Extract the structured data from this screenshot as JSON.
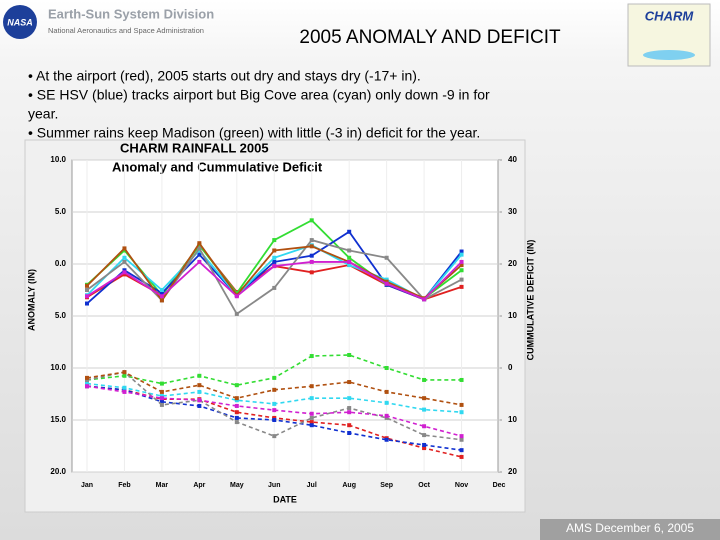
{
  "header": {
    "logo_text": "NASA",
    "division": "Earth-Sun System Division",
    "agency": "National Aeronautics and Space Administration",
    "title": "2005 ANOMALY AND DEFICIT",
    "charm_logo": "CHARM"
  },
  "bullets": [
    "• At the airport (red), 2005 starts out dry and stays dry (-17+ in).",
    "• SE HSV (blue) tracks airport but Big Cove area (cyan) only down -9 in for",
    "year.",
    "• Summer rains keep Madison (green) with little (-3 in) deficit for the year."
  ],
  "footer": "AMS December 6, 2005",
  "chart_data": {
    "type": "line",
    "title": "CHARM RAINFALL 2005",
    "subtitle": "Anomaly and Cummulative Deficit",
    "x_label": "DATE",
    "y_label": "ANOMALY (IN)",
    "y2_label": "CUMMULATIVE DEFICIT (IN)",
    "categories": [
      "Jan",
      "Feb",
      "Mar",
      "Apr",
      "May",
      "Jun",
      "Jul",
      "Aug",
      "Sep",
      "Oct",
      "Nov",
      "Dec"
    ],
    "ylim": [
      -20,
      10
    ],
    "yticks": [
      {
        "value": 10,
        "label": "10.0"
      },
      {
        "value": 5,
        "label": "5.0"
      },
      {
        "value": 0,
        "label": "0.0"
      },
      {
        "value": -5,
        "label": "5.0"
      },
      {
        "value": -10,
        "label": "10.0"
      },
      {
        "value": -15,
        "label": "15.0"
      },
      {
        "value": -20,
        "label": "20.0"
      }
    ],
    "y2lim": [
      -20,
      40
    ],
    "y2ticks": [
      40,
      30,
      20,
      10,
      0,
      {
        "value": -10,
        "label": "10"
      },
      {
        "value": -20,
        "label": "20"
      }
    ],
    "grid": true,
    "series": [
      {
        "color": "#e02020",
        "values": [
          -3.2,
          -1,
          -3,
          1.8,
          -2.7,
          -0.2,
          -0.8,
          -0.1,
          -2,
          -3.4,
          -2.2,
          null
        ]
      },
      {
        "color": "#33dd33",
        "values": [
          -2,
          1.3,
          -3,
          1.8,
          -2.8,
          2.3,
          4.2,
          0.6,
          -2,
          -3.3,
          -0.6,
          null
        ]
      },
      {
        "color": "#1030d0",
        "values": [
          -3.8,
          -0.6,
          -2.8,
          0.9,
          -3,
          0.2,
          0.8,
          3.1,
          -2,
          -3.4,
          1.2,
          null
        ]
      },
      {
        "color": "#30d8f0",
        "values": [
          -3,
          0.6,
          -2.5,
          1.3,
          -3,
          0.6,
          1.8,
          -0.1,
          -1.5,
          -3.4,
          0.9,
          null
        ]
      },
      {
        "color": "#888888",
        "values": [
          -2.5,
          0.2,
          -3.5,
          1.5,
          -4.8,
          -2.3,
          2.3,
          1.3,
          0.6,
          -3.4,
          -1.5,
          null
        ]
      },
      {
        "color": "#b05010",
        "values": [
          -2.1,
          1.5,
          -3.5,
          2,
          -3,
          1.3,
          1.7,
          0.2,
          -1.7,
          -3.3,
          -0.1,
          null
        ]
      },
      {
        "color": "#d020d0",
        "values": [
          -3.1,
          -0.8,
          -3.1,
          0.2,
          -3.1,
          -0.2,
          0.2,
          0.2,
          -1.9,
          -3.4,
          0.2,
          null
        ]
      },
      {
        "color": "#e02020",
        "axis": "y2",
        "values": [
          -3.5,
          -4.2,
          -6,
          -6,
          -8.5,
          -9.6,
          -10.4,
          -11,
          -13.5,
          -15.4,
          -17.1,
          null
        ]
      },
      {
        "color": "#33dd33",
        "axis": "y2",
        "values": [
          -2.3,
          -1.5,
          -3,
          -1.5,
          -3.3,
          -1.9,
          2.3,
          2.5,
          0,
          -2.3,
          -2.3,
          null
        ]
      },
      {
        "color": "#1030d0",
        "axis": "y2",
        "values": [
          -3.5,
          -4.2,
          -6.5,
          -7.3,
          -9.6,
          -10,
          -11,
          -12.5,
          -13.8,
          -14.8,
          -15.8,
          null
        ]
      },
      {
        "color": "#30d8f0",
        "axis": "y2",
        "values": [
          -3,
          -3.8,
          -5.4,
          -4.6,
          -6.2,
          -6.9,
          -5.8,
          -5.8,
          -6.7,
          -8,
          -8.5,
          null
        ]
      },
      {
        "color": "#888888",
        "axis": "y2",
        "values": [
          -2.3,
          -0.8,
          -7.1,
          -6.2,
          -10.4,
          -13.1,
          -9.6,
          -7.7,
          -9.6,
          -12.9,
          -13.8,
          null
        ]
      },
      {
        "color": "#b05010",
        "axis": "y2",
        "values": [
          -1.9,
          -0.8,
          -4.6,
          -3.3,
          -5.8,
          -4.2,
          -3.5,
          -2.7,
          -4.6,
          -5.8,
          -7.1,
          null
        ]
      },
      {
        "color": "#d020d0",
        "axis": "y2",
        "values": [
          -3.5,
          -4.6,
          -5.8,
          -6.2,
          -7.3,
          -8.1,
          -8.8,
          -8.5,
          -9.2,
          -11.2,
          -13.1,
          null
        ]
      }
    ]
  }
}
